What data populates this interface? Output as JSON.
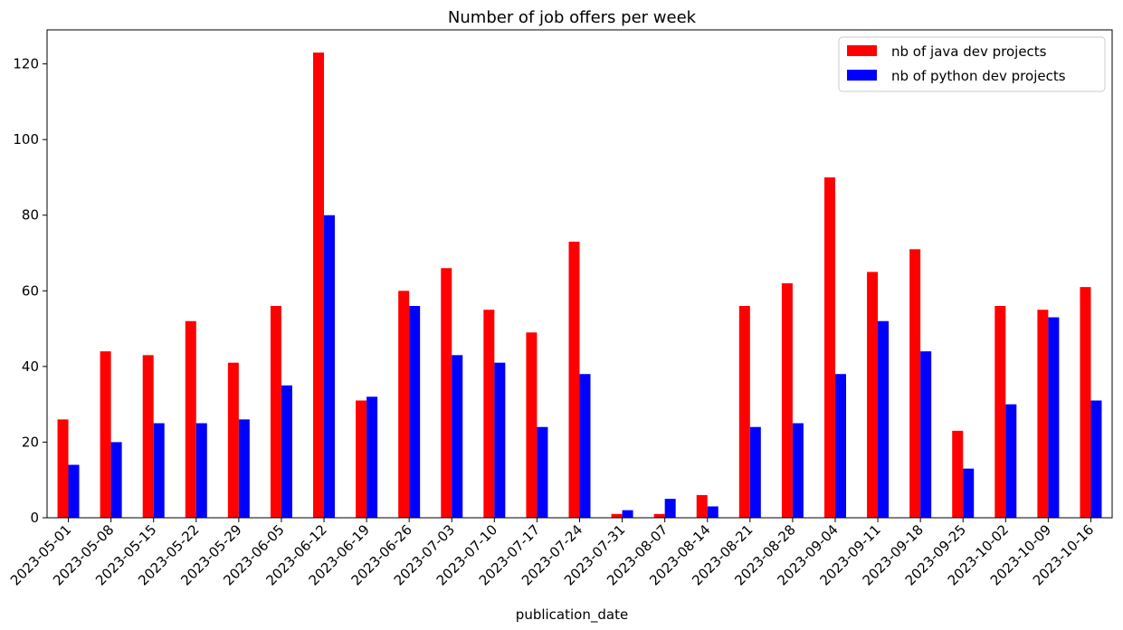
{
  "chart_data": {
    "type": "bar",
    "title": "Number of job offers per week",
    "xlabel": "publication_date",
    "ylabel": "",
    "ylim": [
      0,
      129
    ],
    "yticks": [
      0,
      20,
      40,
      60,
      80,
      100,
      120
    ],
    "grid": false,
    "legend_position": "top-right",
    "categories": [
      "2023-05-01",
      "2023-05-08",
      "2023-05-15",
      "2023-05-22",
      "2023-05-29",
      "2023-06-05",
      "2023-06-12",
      "2023-06-19",
      "2023-06-26",
      "2023-07-03",
      "2023-07-10",
      "2023-07-17",
      "2023-07-24",
      "2023-07-31",
      "2023-08-07",
      "2023-08-14",
      "2023-08-21",
      "2023-08-28",
      "2023-09-04",
      "2023-09-11",
      "2023-09-18",
      "2023-09-25",
      "2023-10-02",
      "2023-10-09",
      "2023-10-16"
    ],
    "series": [
      {
        "name": "nb of java dev projects",
        "color": "#ff0000",
        "values": [
          26,
          44,
          43,
          52,
          41,
          56,
          123,
          31,
          60,
          66,
          55,
          49,
          73,
          1,
          1,
          6,
          56,
          62,
          90,
          65,
          71,
          23,
          56,
          55,
          61
        ]
      },
      {
        "name": "nb of python dev projects",
        "color": "#0000ff",
        "values": [
          14,
          20,
          25,
          25,
          26,
          35,
          80,
          32,
          56,
          43,
          41,
          24,
          38,
          2,
          5,
          3,
          24,
          25,
          38,
          52,
          44,
          13,
          30,
          53,
          31
        ]
      }
    ]
  }
}
